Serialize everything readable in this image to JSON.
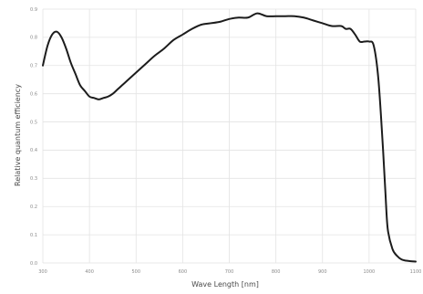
{
  "chart_data": {
    "type": "line",
    "title": "",
    "xlabel": "Wave Length [nm]",
    "ylabel": "Relative quantum efficiency",
    "xlim": [
      300,
      1100
    ],
    "ylim": [
      0,
      0.9
    ],
    "x_ticks": [
      "300",
      "400",
      "500",
      "600",
      "700",
      "800",
      "900",
      "1000",
      "1100"
    ],
    "y_ticks": [
      "0.0",
      "0.1",
      "0.2",
      "0.3",
      "0.4",
      "0.5",
      "0.6",
      "0.7",
      "0.8",
      "0.9"
    ],
    "grid": true,
    "legend": "none",
    "line_color": "#1c1c1c",
    "series": [
      {
        "x": [
          300,
          310,
          320,
          330,
          340,
          350,
          360,
          370,
          380,
          390,
          400,
          410,
          420,
          430,
          440,
          450,
          460,
          470,
          480,
          490,
          500,
          520,
          540,
          560,
          580,
          600,
          620,
          640,
          660,
          680,
          700,
          720,
          740,
          760,
          780,
          800,
          820,
          840,
          860,
          880,
          900,
          920,
          940,
          950,
          960,
          970,
          980,
          990,
          1000,
          1010,
          1020,
          1030,
          1035,
          1040,
          1050,
          1060,
          1070,
          1080,
          1090,
          1100
        ],
        "values": [
          0.7,
          0.77,
          0.81,
          0.82,
          0.8,
          0.76,
          0.71,
          0.67,
          0.63,
          0.61,
          0.59,
          0.585,
          0.58,
          0.585,
          0.59,
          0.6,
          0.615,
          0.63,
          0.645,
          0.66,
          0.675,
          0.705,
          0.735,
          0.76,
          0.79,
          0.81,
          0.83,
          0.845,
          0.85,
          0.855,
          0.865,
          0.87,
          0.87,
          0.885,
          0.875,
          0.875,
          0.875,
          0.875,
          0.87,
          0.86,
          0.85,
          0.84,
          0.84,
          0.83,
          0.83,
          0.81,
          0.785,
          0.785,
          0.785,
          0.77,
          0.65,
          0.4,
          0.25,
          0.12,
          0.05,
          0.025,
          0.012,
          0.008,
          0.006,
          0.005
        ]
      }
    ]
  }
}
